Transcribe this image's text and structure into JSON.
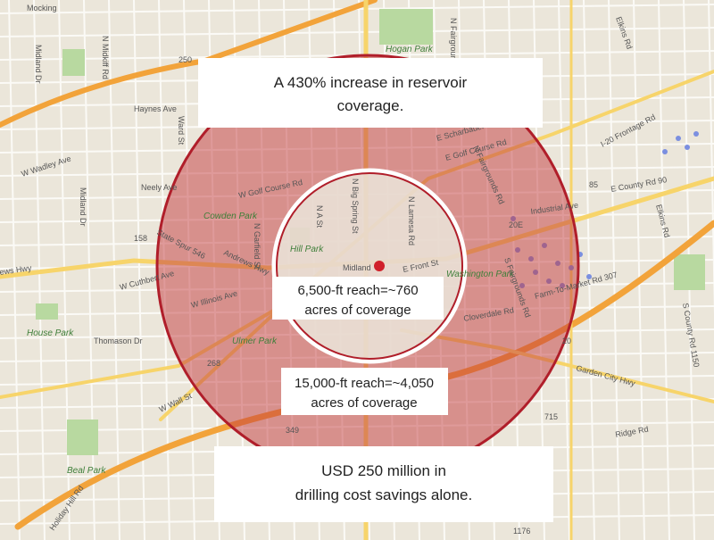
{
  "callouts": {
    "top": [
      "A 430% increase in reservoir",
      "coverage."
    ],
    "inner": [
      "6,500-ft reach=~760",
      "acres of coverage"
    ],
    "outer": [
      "15,000-ft reach=~4,050",
      "acres of coverage"
    ],
    "bottom": [
      "USD 250 million in",
      "drilling cost savings alone."
    ]
  },
  "map_labels": [
    "Mocking",
    "N Midkiff Rd",
    "Midland Dr",
    "250",
    "Hogan Park",
    "N Fairgrounds Rd",
    "Elkins Rd",
    "Haynes Ave",
    "Ward St",
    "W Wadley Ave",
    "Midland Dr",
    "Neely Ave",
    "Cowden Park",
    "W Golf Course Rd",
    "N Garfield St",
    "N A St",
    "N Big Spring St",
    "N Lamesa Rd",
    "E Scharbauer Dr",
    "E Golf Course Rd",
    "N Fairgrounds Rd",
    "I-20 Frontage Rd",
    "E County Rd 90",
    "Industrial Ave",
    "Elkins Rd",
    "158",
    "State Spur 546",
    "Hill Park",
    "Andrews Hwy",
    "W Cuthbert Ave",
    "W Illinois Ave",
    "House Park",
    "Midland",
    "E Front St",
    "Washington Park",
    "S Fairgrounds Rd",
    "Farm-To-Market Rd 307",
    "Cloverdale Rd",
    "Ulmer Park",
    "Thomason Dr",
    "268",
    "W Wall St",
    "Garden City Hwy",
    "S County Rd 1150",
    "Beal Park",
    "349",
    "20",
    "715",
    "Ridge Rd",
    "Holiday Hill Rd",
    "1176",
    "85",
    "20E",
    "ews Hwy"
  ]
}
